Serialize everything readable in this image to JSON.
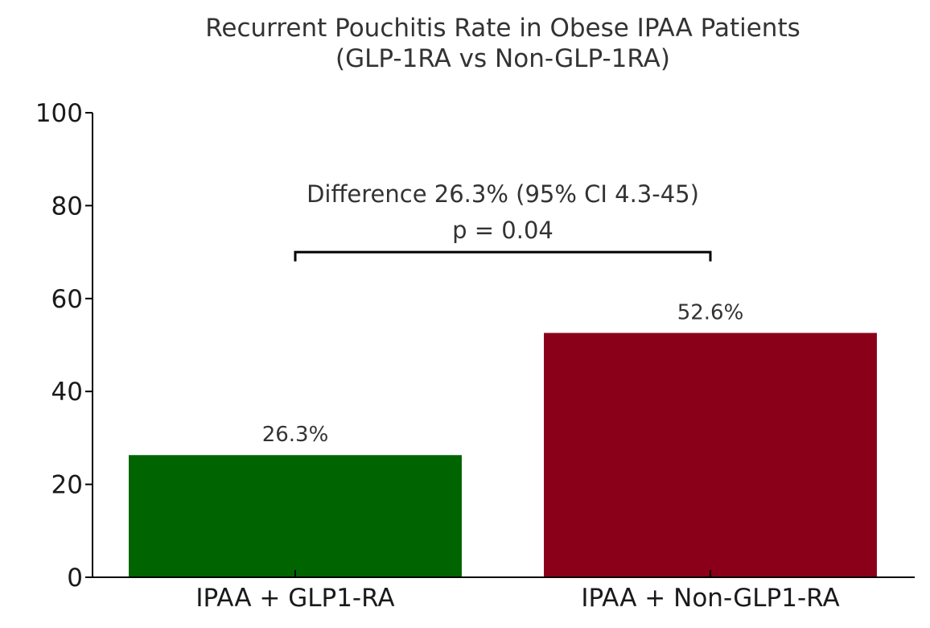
{
  "chart_data": {
    "type": "bar",
    "title": "Recurrent Pouchitis Rate in Obese IPAA Patients",
    "subtitle": "(GLP-1RA vs Non-GLP-1RA)",
    "xlabel": "",
    "ylabel": "",
    "categories": [
      "IPAA + GLP1-RA",
      "IPAA + Non-GLP1-RA"
    ],
    "values": [
      26.3,
      52.6
    ],
    "value_labels": [
      "26.3%",
      "52.6%"
    ],
    "colors": [
      "#006400",
      "#8b0019"
    ],
    "ylim": [
      0,
      100
    ],
    "yticks": [
      0,
      20,
      40,
      60,
      80,
      100
    ],
    "grid": false,
    "annotation": {
      "line1": "Difference 26.3% (95% CI 4.3-45)",
      "line2": "p = 0.04",
      "bracket_y": 70,
      "bracket_drop": 2
    }
  }
}
